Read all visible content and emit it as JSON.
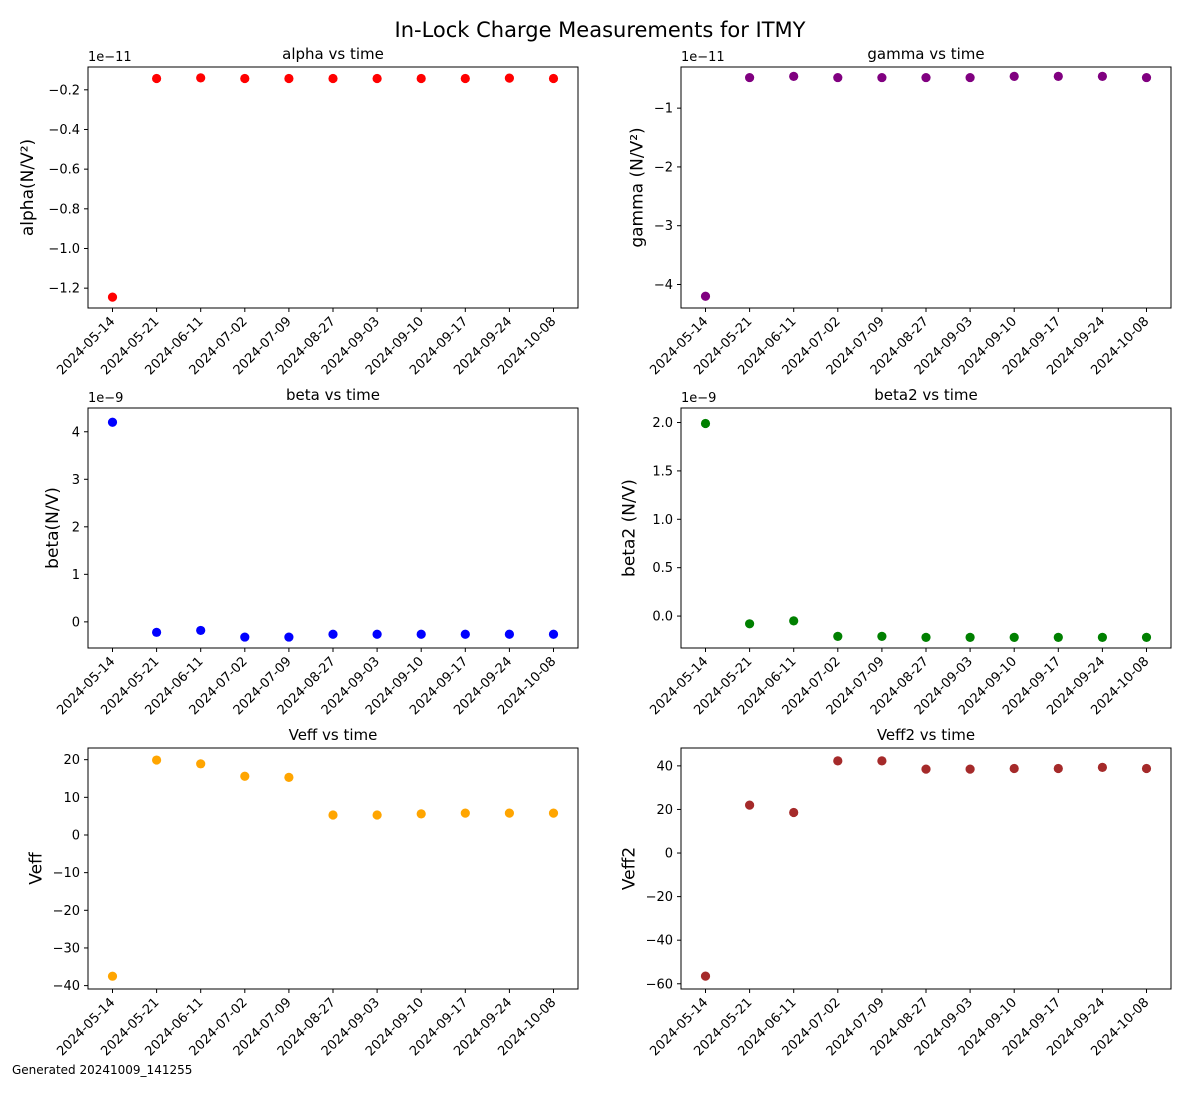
{
  "suptitle": "In-Lock Charge Measurements for ITMY",
  "footer": "Generated 20241009_141255",
  "chart_data": [
    {
      "id": "alpha",
      "type": "scatter",
      "title": "alpha vs time",
      "ylabel": "alpha(N/V²)",
      "color": "#ff0000",
      "offset_text": "1e−11",
      "categories": [
        "2024-05-14",
        "2024-05-21",
        "2024-06-11",
        "2024-07-02",
        "2024-07-09",
        "2024-08-27",
        "2024-09-03",
        "2024-09-10",
        "2024-09-17",
        "2024-09-24",
        "2024-10-08"
      ],
      "values": [
        -1.245e-11,
        -1.43e-12,
        -1.4e-12,
        -1.43e-12,
        -1.43e-12,
        -1.43e-12,
        -1.43e-12,
        -1.43e-12,
        -1.43e-12,
        -1.41e-12,
        -1.43e-12
      ],
      "ylim": [
        -1.3e-11,
        -8.5e-13
      ],
      "yticks": [
        -1.2e-11,
        -1e-11,
        -8e-12,
        -6e-12,
        -4e-12,
        -2e-12
      ],
      "ytick_labels": [
        "−1.2",
        "−1.0",
        "−0.8",
        "−0.6",
        "−0.4",
        "−0.2"
      ]
    },
    {
      "id": "gamma",
      "type": "scatter",
      "title": "gamma vs time",
      "ylabel": "gamma (N/V²)",
      "color": "#800080",
      "offset_text": "1e−11",
      "categories": [
        "2024-05-14",
        "2024-05-21",
        "2024-06-11",
        "2024-07-02",
        "2024-07-09",
        "2024-08-27",
        "2024-09-03",
        "2024-09-10",
        "2024-09-17",
        "2024-09-24",
        "2024-10-08"
      ],
      "values": [
        -4.2e-11,
        -4.8e-12,
        -4.6e-12,
        -4.8e-12,
        -4.8e-12,
        -4.8e-12,
        -4.8e-12,
        -4.6e-12,
        -4.6e-12,
        -4.6e-12,
        -4.8e-12
      ],
      "ylim": [
        -4.4e-11,
        -3e-12
      ],
      "yticks": [
        -4e-11,
        -3e-11,
        -2e-11,
        -1e-11
      ],
      "ytick_labels": [
        "−4",
        "−3",
        "−2",
        "−1"
      ]
    },
    {
      "id": "beta",
      "type": "scatter",
      "title": "beta vs time",
      "ylabel": "beta(N/V)",
      "color": "#0000ff",
      "offset_text": "1e−9",
      "categories": [
        "2024-05-14",
        "2024-05-21",
        "2024-06-11",
        "2024-07-02",
        "2024-07-09",
        "2024-08-27",
        "2024-09-03",
        "2024-09-10",
        "2024-09-17",
        "2024-09-24",
        "2024-10-08"
      ],
      "values": [
        4.2e-09,
        -2.2e-10,
        -1.8e-10,
        -3.2e-10,
        -3.2e-10,
        -2.6e-10,
        -2.6e-10,
        -2.6e-10,
        -2.6e-10,
        -2.6e-10,
        -2.6e-10
      ],
      "ylim": [
        -5.5e-10,
        4.5e-09
      ],
      "yticks": [
        0,
        1e-09,
        2e-09,
        3e-09,
        4e-09
      ],
      "ytick_labels": [
        "0",
        "1",
        "2",
        "3",
        "4"
      ]
    },
    {
      "id": "beta2",
      "type": "scatter",
      "title": "beta2 vs time",
      "ylabel": "beta2 (N/V)",
      "color": "#008000",
      "offset_text": "1e−9",
      "categories": [
        "2024-05-14",
        "2024-05-21",
        "2024-06-11",
        "2024-07-02",
        "2024-07-09",
        "2024-08-27",
        "2024-09-03",
        "2024-09-10",
        "2024-09-17",
        "2024-09-24",
        "2024-10-08"
      ],
      "values": [
        1.99e-09,
        -8e-11,
        -5e-11,
        -2.1e-10,
        -2.1e-10,
        -2.2e-10,
        -2.2e-10,
        -2.2e-10,
        -2.2e-10,
        -2.2e-10,
        -2.2e-10
      ],
      "ylim": [
        -3.3e-10,
        2.15e-09
      ],
      "yticks": [
        0,
        5e-10,
        1e-09,
        1.5e-09,
        2e-09
      ],
      "ytick_labels": [
        "0.0",
        "0.5",
        "1.0",
        "1.5",
        "2.0"
      ]
    },
    {
      "id": "veff",
      "type": "scatter",
      "title": "Veff vs time",
      "ylabel": "Veff",
      "color": "#ffa500",
      "offset_text": "",
      "categories": [
        "2024-05-14",
        "2024-05-21",
        "2024-06-11",
        "2024-07-02",
        "2024-07-09",
        "2024-08-27",
        "2024-09-03",
        "2024-09-10",
        "2024-09-17",
        "2024-09-24",
        "2024-10-08"
      ],
      "values": [
        -37.5,
        19.9,
        18.9,
        15.6,
        15.3,
        5.3,
        5.3,
        5.6,
        5.8,
        5.8,
        5.8
      ],
      "ylim": [
        -40.9,
        23.1
      ],
      "yticks": [
        -40,
        -30,
        -20,
        -10,
        0,
        10,
        20
      ],
      "ytick_labels": [
        "−40",
        "−30",
        "−20",
        "−10",
        "0",
        "10",
        "20"
      ]
    },
    {
      "id": "veff2",
      "type": "scatter",
      "title": "Veff2 vs time",
      "ylabel": "Veff2",
      "color": "#a52a2a",
      "offset_text": "",
      "categories": [
        "2024-05-14",
        "2024-05-21",
        "2024-06-11",
        "2024-07-02",
        "2024-07-09",
        "2024-08-27",
        "2024-09-03",
        "2024-09-10",
        "2024-09-17",
        "2024-09-24",
        "2024-10-08"
      ],
      "values": [
        -56.5,
        22,
        18.6,
        42.3,
        42.3,
        38.5,
        38.5,
        38.8,
        38.8,
        39.3,
        38.8
      ],
      "ylim": [
        -62.4,
        48.2
      ],
      "yticks": [
        -60,
        -40,
        -20,
        0,
        20,
        40
      ],
      "ytick_labels": [
        "−60",
        "−40",
        "−20",
        "0",
        "20",
        "40"
      ]
    }
  ]
}
